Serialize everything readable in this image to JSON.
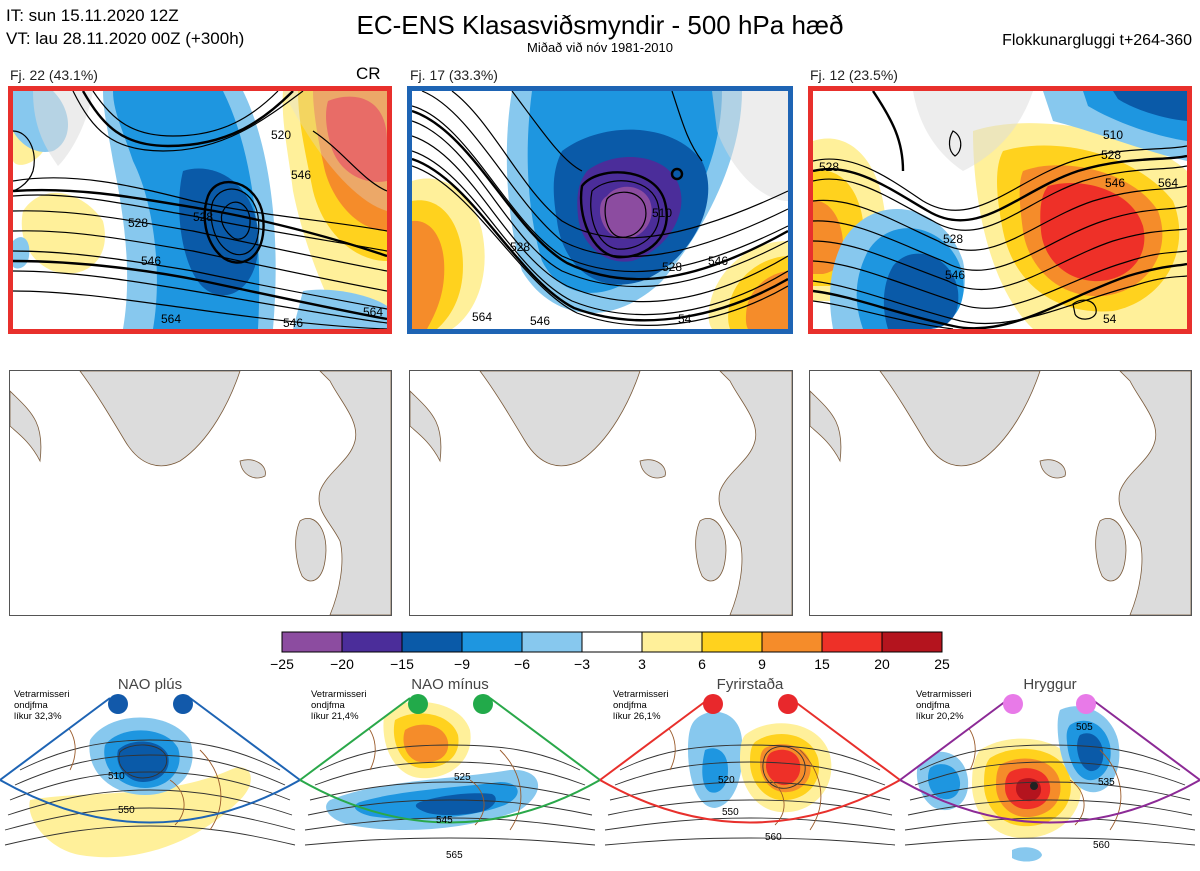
{
  "header": {
    "it_line": "IT: sun 15.11.2020 12Z",
    "vt_line": "VT: lau 28.11.2020 00Z  (+300h)",
    "title": "EC-ENS Klasasviðsmyndir - 500 hPa hæð",
    "subtitle": "Miðað við nóv 1981-2010",
    "window": "Flokkunargluggi t+264-360"
  },
  "clusters": [
    {
      "label": "Fj. 22 (43.1%)",
      "tag": "CR",
      "border": "#e8302c",
      "contours": [
        "528",
        "520",
        "528",
        "546",
        "546",
        "564",
        "546",
        "564"
      ]
    },
    {
      "label": "Fj. 17 (33.3%)",
      "tag": "",
      "border": "#1e64b4",
      "contours": [
        "510",
        "528",
        "546",
        "564",
        "528",
        "546",
        "54"
      ]
    },
    {
      "label": "Fj. 12 (23.5%)",
      "tag": "",
      "border": "#e8302c",
      "contours": [
        "510",
        "528",
        "546",
        "528",
        "546",
        "564",
        "528",
        "54"
      ]
    }
  ],
  "colorbar": {
    "ticks": [
      "−25",
      "−20",
      "−15",
      "−9",
      "−6",
      "−3",
      "3",
      "6",
      "9",
      "15",
      "20",
      "25"
    ],
    "colors": [
      "#8c4ca0",
      "#4b2d9a",
      "#0a5aa8",
      "#1e96e0",
      "#87c8ee",
      "#ffffff",
      "#fff09a",
      "#ffd21e",
      "#f58c2a",
      "#ee3028",
      "#b4141e"
    ]
  },
  "regimes": [
    {
      "name": "NAO plús",
      "text": [
        "Vetrarmisseri",
        "ondjfma",
        "líkur 32,3%"
      ],
      "dot": "#1259aa",
      "border": "#1e64b4",
      "labels": [
        "510",
        "550"
      ]
    },
    {
      "name": "NAO mínus",
      "text": [
        "Vetrarmisseri",
        "ondjfma",
        "líkur 21,4%"
      ],
      "dot": "#22aa4a",
      "border": "#2aa84a",
      "labels": [
        "525",
        "545",
        "565"
      ]
    },
    {
      "name": "Fyrirstaða",
      "text": [
        "Vetrarmisseri",
        "ondjfma",
        "líkur 26,1%"
      ],
      "dot": "#e8282c",
      "border": "#e8302c",
      "labels": [
        "520",
        "550",
        "560"
      ]
    },
    {
      "name": "Hryggur",
      "text": [
        "Vetrarmisseri",
        "ondjfma",
        "líkur 20,2%"
      ],
      "dot": "#e87ae8",
      "border": "#8c2a96",
      "labels": [
        "505",
        "535",
        "560"
      ]
    }
  ]
}
